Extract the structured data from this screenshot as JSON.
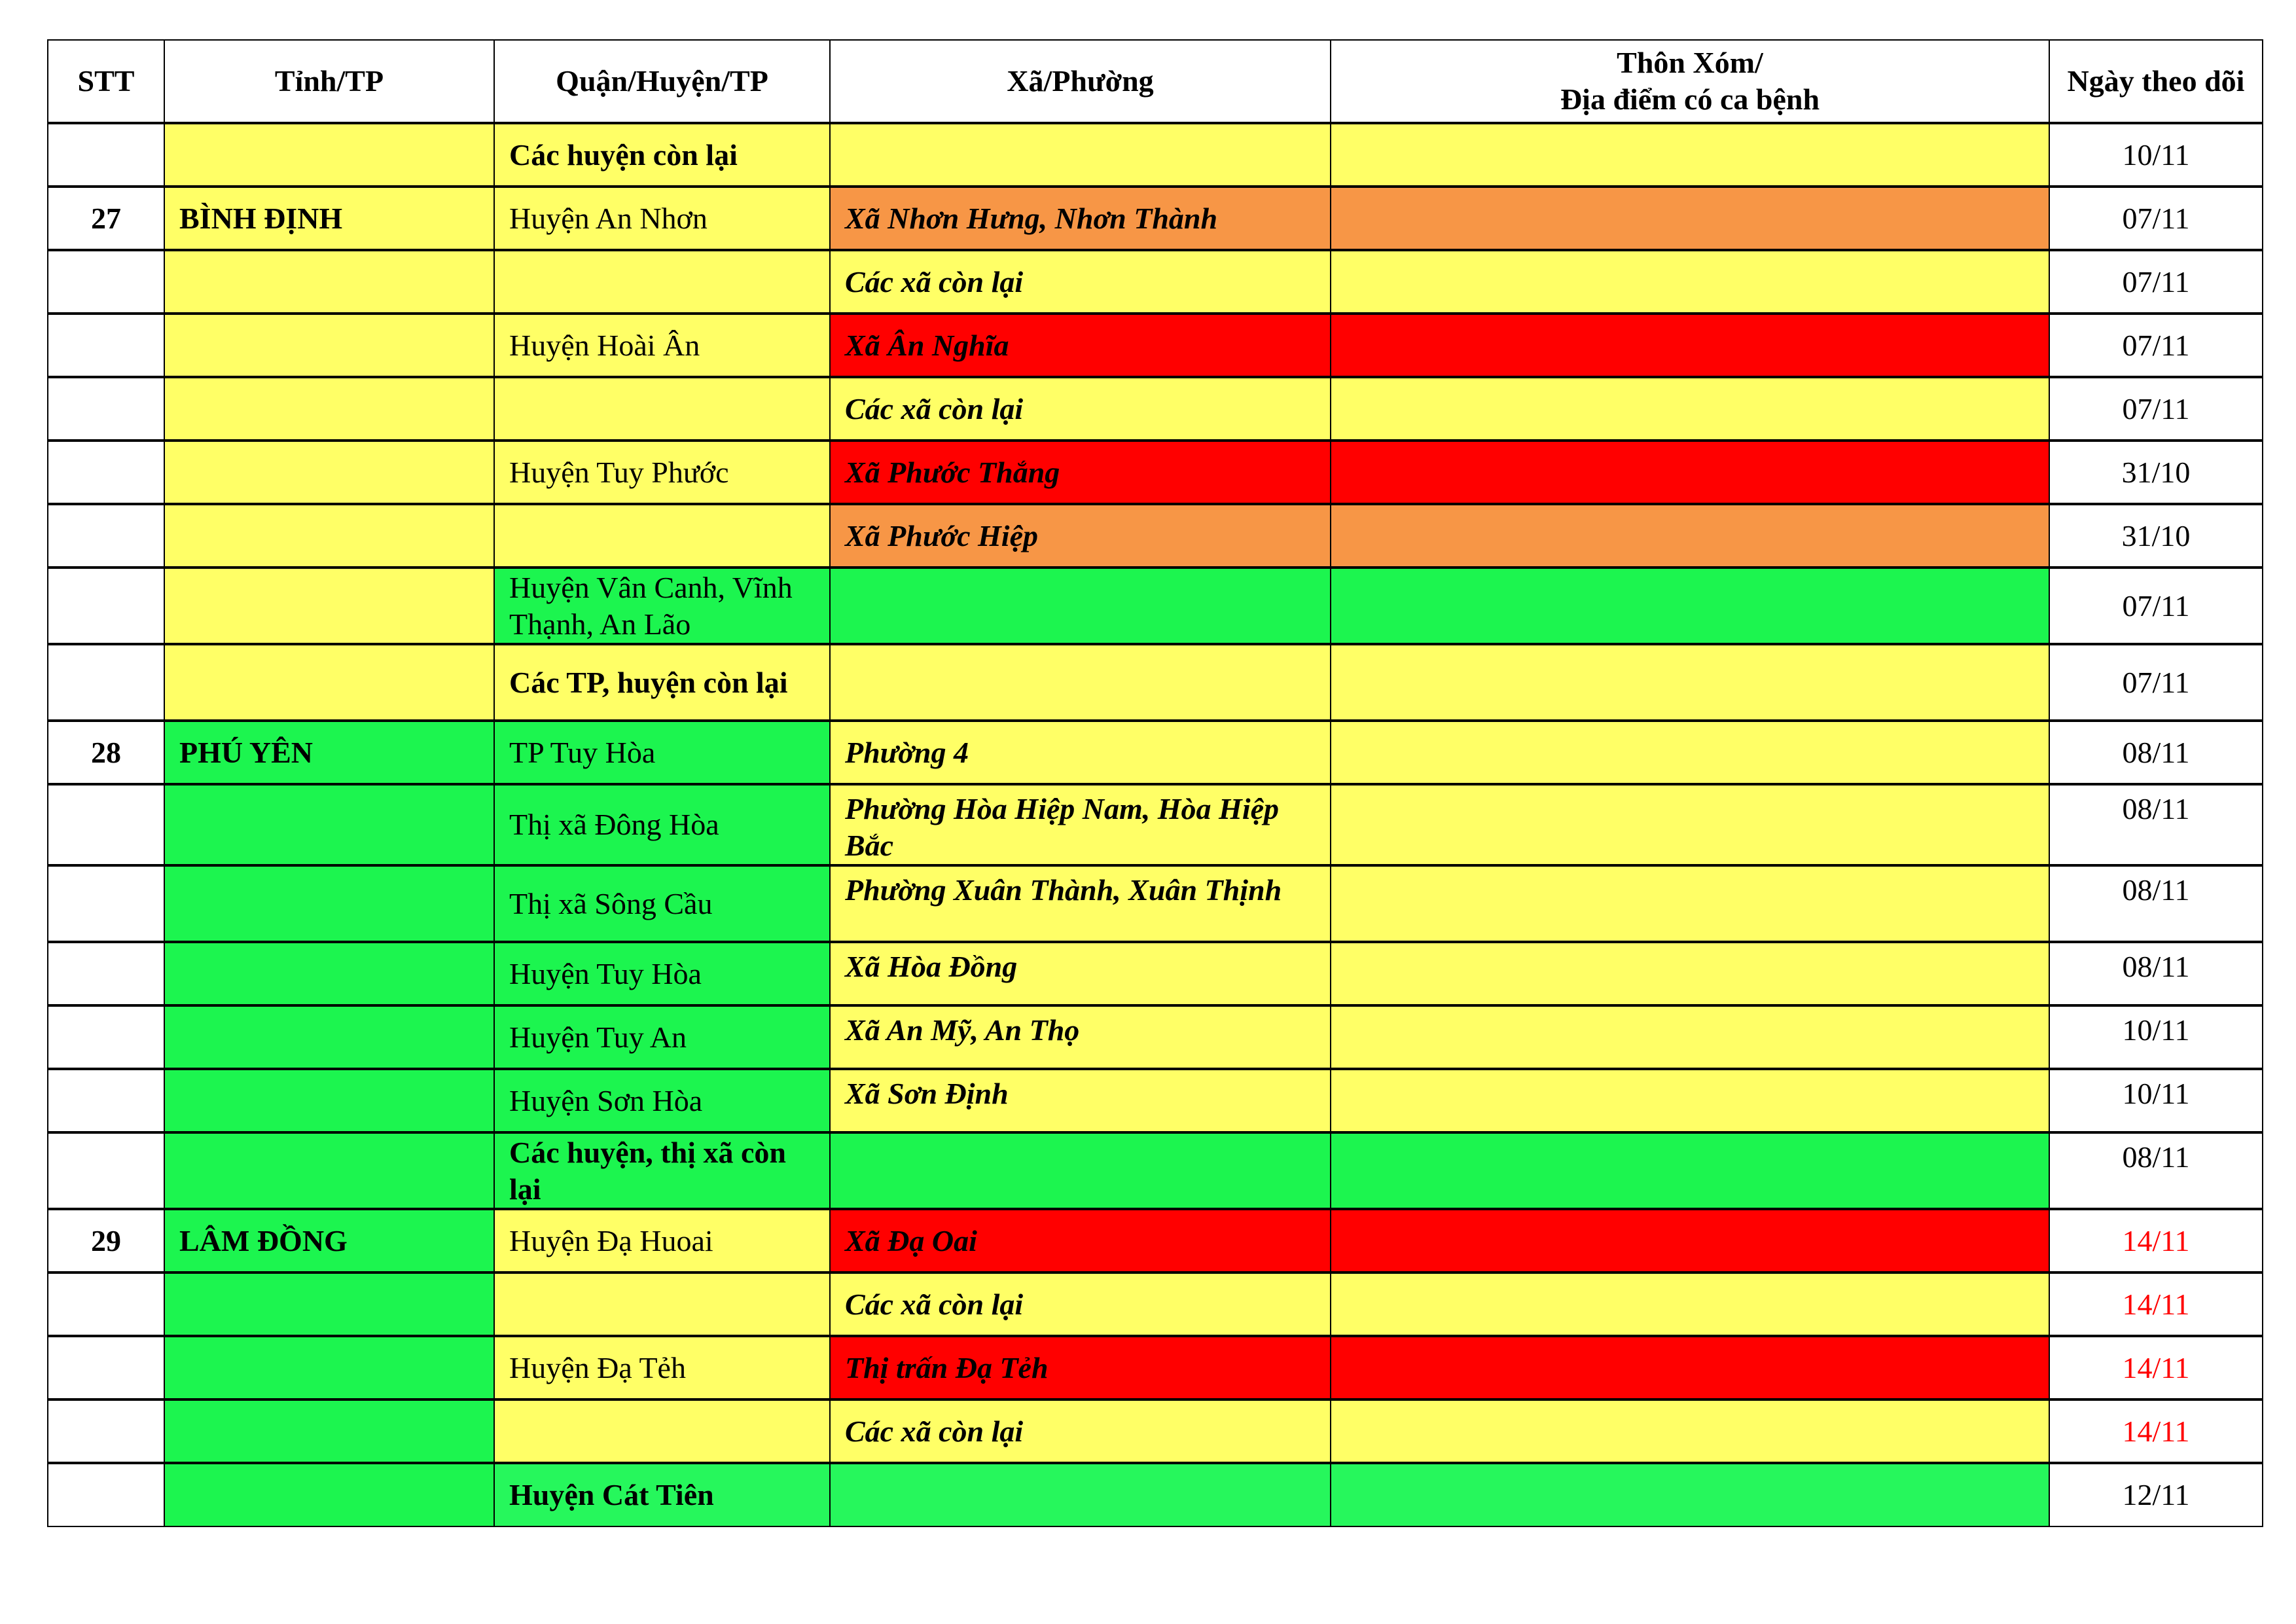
{
  "colors": {
    "w": "#ffffff",
    "Y": "#ffff66",
    "O": "#f79646",
    "R": "#ff0000",
    "G": "#1cf54f",
    "G2": "#26f75c",
    "red_text": "#ff0000"
  },
  "headers": [
    "STT",
    "Tỉnh/TP",
    "Quận/Huyện/TP",
    "Xã/Phường",
    "Thôn Xóm/\nĐịa điểm có ca bệnh",
    "Ngày theo dõi"
  ],
  "rows": [
    {
      "stt": "",
      "tinh": "",
      "huyen": "Các huyện còn lại",
      "xa": "",
      "thon": "",
      "ngay": "10/11",
      "fill": [
        "w",
        "Y",
        "Y",
        "Y",
        "Y",
        "w"
      ],
      "huyen_bold": true
    },
    {
      "stt": "27",
      "tinh": "BÌNH ĐỊNH",
      "huyen": "Huyện An Nhơn",
      "xa": "Xã Nhơn Hưng, Nhơn Thành",
      "thon": "",
      "ngay": "07/11",
      "fill": [
        "w",
        "Y",
        "Y",
        "O",
        "O",
        "w"
      ]
    },
    {
      "stt": "",
      "tinh": "",
      "huyen": "",
      "xa": "Các xã còn lại",
      "thon": "",
      "ngay": "07/11",
      "fill": [
        "w",
        "Y",
        "Y",
        "Y",
        "Y",
        "w"
      ]
    },
    {
      "stt": "",
      "tinh": "",
      "huyen": "Huyện Hoài Ân",
      "xa": "Xã Ân Nghĩa",
      "thon": "",
      "ngay": "07/11",
      "fill": [
        "w",
        "Y",
        "Y",
        "R",
        "R",
        "w"
      ]
    },
    {
      "stt": "",
      "tinh": "",
      "huyen": "",
      "xa": "Các xã còn lại",
      "thon": "",
      "ngay": "07/11",
      "fill": [
        "w",
        "Y",
        "Y",
        "Y",
        "Y",
        "w"
      ]
    },
    {
      "stt": "",
      "tinh": "",
      "huyen": "Huyện Tuy Phước",
      "xa": "Xã Phước Thắng",
      "thon": "",
      "ngay": "31/10",
      "fill": [
        "w",
        "Y",
        "Y",
        "R",
        "R",
        "w"
      ]
    },
    {
      "stt": "",
      "tinh": "",
      "huyen": "",
      "xa": "Xã Phước Hiệp",
      "thon": "",
      "ngay": "31/10",
      "fill": [
        "w",
        "Y",
        "Y",
        "O",
        "O",
        "w"
      ]
    },
    {
      "stt": "",
      "tinh": "",
      "huyen": "Huyện Vân Canh, Vĩnh Thạnh, An Lão",
      "xa": "",
      "thon": "",
      "ngay": "07/11",
      "fill": [
        "w",
        "Y",
        "G",
        "G",
        "G",
        "w"
      ],
      "tall": true
    },
    {
      "stt": "",
      "tinh": "",
      "huyen": "Các TP, huyện còn lại",
      "xa": "",
      "thon": "",
      "ngay": "07/11",
      "fill": [
        "w",
        "Y",
        "Y",
        "Y",
        "Y",
        "w"
      ],
      "huyen_bold": true,
      "tall": true
    },
    {
      "stt": "28",
      "tinh": "PHÚ YÊN",
      "huyen": "TP Tuy Hòa",
      "xa": "Phường 4",
      "thon": "",
      "ngay": "08/11",
      "fill": [
        "w",
        "G",
        "G",
        "Y",
        "Y",
        "w"
      ]
    },
    {
      "stt": "",
      "tinh": "",
      "huyen": "Thị xã Đông Hòa",
      "xa": "Phường Hòa Hiệp Nam, Hòa Hiệp Bắc",
      "thon": "",
      "ngay": "08/11",
      "fill": [
        "w",
        "G",
        "G",
        "Y",
        "Y",
        "w"
      ],
      "tall": true,
      "top": true
    },
    {
      "stt": "",
      "tinh": "",
      "huyen": "Thị xã Sông Cầu",
      "xa": "Phường Xuân Thành, Xuân Thịnh",
      "thon": "",
      "ngay": "08/11",
      "fill": [
        "w",
        "G",
        "G",
        "Y",
        "Y",
        "w"
      ],
      "tall": true,
      "top": true
    },
    {
      "stt": "",
      "tinh": "",
      "huyen": "Huyện Tuy Hòa",
      "xa": "Xã Hòa Đồng",
      "thon": "",
      "ngay": "08/11",
      "fill": [
        "w",
        "G",
        "G",
        "Y",
        "Y",
        "w"
      ],
      "top": true
    },
    {
      "stt": "",
      "tinh": "",
      "huyen": "Huyện Tuy An",
      "xa": "Xã An Mỹ, An Thọ",
      "thon": "",
      "ngay": "10/11",
      "fill": [
        "w",
        "G",
        "G",
        "Y",
        "Y",
        "w"
      ],
      "top": true
    },
    {
      "stt": "",
      "tinh": "",
      "huyen": "Huyện Sơn Hòa",
      "xa": "Xã Sơn Định",
      "thon": "",
      "ngay": "10/11",
      "fill": [
        "w",
        "G",
        "G",
        "Y",
        "Y",
        "w"
      ],
      "top": true
    },
    {
      "stt": "",
      "tinh": "",
      "huyen": "Các huyện, thị xã còn lại",
      "xa": "",
      "thon": "",
      "ngay": "08/11",
      "fill": [
        "w",
        "G",
        "G",
        "G",
        "G",
        "w"
      ],
      "huyen_bold": true,
      "tall": true,
      "top": true
    },
    {
      "stt": "29",
      "tinh": "LÂM ĐỒNG",
      "huyen": "Huyện Đạ Huoai",
      "xa": "Xã Đạ Oai",
      "thon": "",
      "ngay": "14/11",
      "fill": [
        "w",
        "G",
        "Y",
        "R",
        "R",
        "w"
      ],
      "red_date": true
    },
    {
      "stt": "",
      "tinh": "",
      "huyen": "",
      "xa": "Các xã còn lại",
      "thon": "",
      "ngay": "14/11",
      "fill": [
        "w",
        "G",
        "Y",
        "Y",
        "Y",
        "w"
      ],
      "red_date": true
    },
    {
      "stt": "",
      "tinh": "",
      "huyen": "Huyện Đạ Tẻh",
      "xa": "Thị trấn Đạ Tẻh",
      "thon": "",
      "ngay": "14/11",
      "fill": [
        "w",
        "G",
        "Y",
        "R",
        "R",
        "w"
      ],
      "red_date": true
    },
    {
      "stt": "",
      "tinh": "",
      "huyen": "",
      "xa": "Các xã còn lại",
      "thon": "",
      "ngay": "14/11",
      "fill": [
        "w",
        "G",
        "Y",
        "Y",
        "Y",
        "w"
      ],
      "red_date": true
    },
    {
      "stt": "",
      "tinh": "",
      "huyen": "Huyện Cát Tiên",
      "xa": "",
      "thon": "",
      "ngay": "12/11",
      "fill": [
        "w",
        "G",
        "G2",
        "G2",
        "G2",
        "w"
      ],
      "huyen_bold": true
    }
  ]
}
